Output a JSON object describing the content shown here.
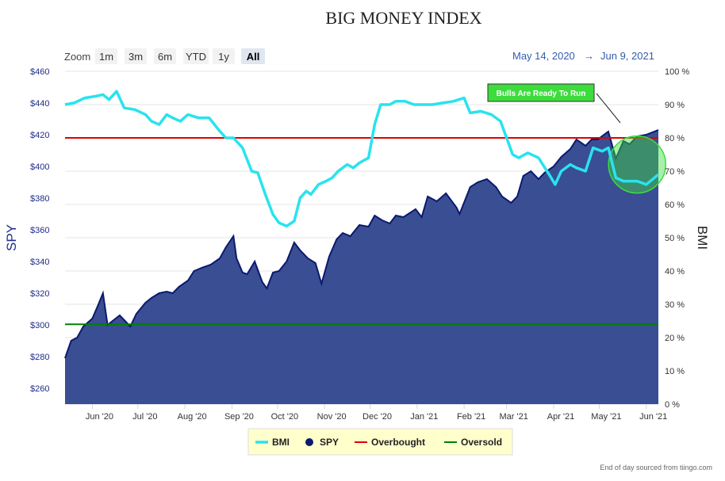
{
  "title": "BIG MONEY INDEX",
  "zoom": {
    "label": "Zoom",
    "buttons": [
      "1m",
      "3m",
      "6m",
      "YTD",
      "1y",
      "All"
    ],
    "active": "All"
  },
  "range": {
    "from": "May 14, 2020",
    "arrow": "→",
    "to": "Jun 9, 2021"
  },
  "credit": "End of day sourced from tiingo.com",
  "annotation": {
    "text": "Bulls Are Ready To Run",
    "color": "#3ddc3d"
  },
  "colors": {
    "spy_fill": "#3a4e93",
    "spy_line": "#0b1a6e",
    "bmi_line": "#29e3ee",
    "overbought": "#e10000",
    "oversold": "#008000",
    "legend_bg": "#ffffcc"
  },
  "chart_data": {
    "type": "line",
    "title": "BIG MONEY INDEX",
    "x_range": [
      "2020-05-14",
      "2021-06-09"
    ],
    "x_ticks": [
      "Jun '20",
      "Jul '20",
      "Aug '20",
      "Sep '20",
      "Oct '20",
      "Nov '20",
      "Dec '20",
      "Jan '21",
      "Feb '21",
      "Mar '21",
      "Apr '21",
      "May '21",
      "Jun '21"
    ],
    "y_left": {
      "label": "SPY",
      "range": [
        250,
        460
      ],
      "ticks": [
        "$260",
        "$280",
        "$300",
        "$320",
        "$340",
        "$360",
        "$380",
        "$400",
        "$420",
        "$440",
        "$460"
      ]
    },
    "y_right": {
      "label": "BMI",
      "range": [
        0,
        100
      ],
      "ticks": [
        "0 %",
        "10 %",
        "20 %",
        "30 %",
        "40 %",
        "50 %",
        "60 %",
        "70 %",
        "80 %",
        "90 %",
        "100 %"
      ]
    },
    "series": [
      {
        "name": "SPY",
        "type": "area",
        "axis": "left",
        "points": [
          [
            "2020-05-14",
            279
          ],
          [
            "2020-05-18",
            290
          ],
          [
            "2020-05-22",
            292
          ],
          [
            "2020-05-26",
            299
          ],
          [
            "2020-06-01",
            304
          ],
          [
            "2020-06-05",
            313
          ],
          [
            "2020-06-08",
            320
          ],
          [
            "2020-06-11",
            300
          ],
          [
            "2020-06-15",
            303
          ],
          [
            "2020-06-19",
            306
          ],
          [
            "2020-06-26",
            299
          ],
          [
            "2020-06-30",
            307
          ],
          [
            "2020-07-06",
            314
          ],
          [
            "2020-07-10",
            317
          ],
          [
            "2020-07-15",
            320
          ],
          [
            "2020-07-20",
            321
          ],
          [
            "2020-07-24",
            320
          ],
          [
            "2020-07-28",
            324
          ],
          [
            "2020-08-03",
            328
          ],
          [
            "2020-08-07",
            334
          ],
          [
            "2020-08-12",
            336
          ],
          [
            "2020-08-18",
            338
          ],
          [
            "2020-08-24",
            342
          ],
          [
            "2020-08-28",
            349
          ],
          [
            "2020-09-02",
            356
          ],
          [
            "2020-09-04",
            342
          ],
          [
            "2020-09-08",
            333
          ],
          [
            "2020-09-11",
            332
          ],
          [
            "2020-09-16",
            340
          ],
          [
            "2020-09-21",
            327
          ],
          [
            "2020-09-24",
            323
          ],
          [
            "2020-09-28",
            333
          ],
          [
            "2020-10-02",
            334
          ],
          [
            "2020-10-07",
            340
          ],
          [
            "2020-10-12",
            352
          ],
          [
            "2020-10-16",
            347
          ],
          [
            "2020-10-21",
            342
          ],
          [
            "2020-10-26",
            339
          ],
          [
            "2020-10-30",
            326
          ],
          [
            "2020-11-04",
            343
          ],
          [
            "2020-11-09",
            354
          ],
          [
            "2020-11-13",
            358
          ],
          [
            "2020-11-18",
            356
          ],
          [
            "2020-11-24",
            363
          ],
          [
            "2020-11-30",
            362
          ],
          [
            "2020-12-04",
            369
          ],
          [
            "2020-12-09",
            366
          ],
          [
            "2020-12-14",
            364
          ],
          [
            "2020-12-18",
            369
          ],
          [
            "2020-12-23",
            368
          ],
          [
            "2020-12-31",
            373
          ],
          [
            "2021-01-04",
            368
          ],
          [
            "2021-01-08",
            381
          ],
          [
            "2021-01-14",
            378
          ],
          [
            "2021-01-20",
            383
          ],
          [
            "2021-01-27",
            374
          ],
          [
            "2021-01-29",
            370
          ],
          [
            "2021-02-05",
            387
          ],
          [
            "2021-02-10",
            390
          ],
          [
            "2021-02-16",
            392
          ],
          [
            "2021-02-22",
            387
          ],
          [
            "2021-02-26",
            381
          ],
          [
            "2021-03-04",
            377
          ],
          [
            "2021-03-08",
            381
          ],
          [
            "2021-03-12",
            394
          ],
          [
            "2021-03-17",
            397
          ],
          [
            "2021-03-22",
            392
          ],
          [
            "2021-03-26",
            396
          ],
          [
            "2021-04-01",
            400
          ],
          [
            "2021-04-06",
            406
          ],
          [
            "2021-04-12",
            411
          ],
          [
            "2021-04-16",
            417
          ],
          [
            "2021-04-22",
            413
          ],
          [
            "2021-04-26",
            417
          ],
          [
            "2021-04-30",
            417
          ],
          [
            "2021-05-07",
            422
          ],
          [
            "2021-05-12",
            405
          ],
          [
            "2021-05-17",
            416
          ],
          [
            "2021-05-21",
            414
          ],
          [
            "2021-05-26",
            419
          ],
          [
            "2021-06-01",
            420
          ],
          [
            "2021-06-09",
            423
          ]
        ]
      },
      {
        "name": "BMI",
        "type": "line",
        "axis": "right",
        "points": [
          [
            "2020-05-14",
            90
          ],
          [
            "2020-05-20",
            90.5
          ],
          [
            "2020-05-27",
            92
          ],
          [
            "2020-06-03",
            92.5
          ],
          [
            "2020-06-08",
            93
          ],
          [
            "2020-06-12",
            91.5
          ],
          [
            "2020-06-17",
            94
          ],
          [
            "2020-06-22",
            89
          ],
          [
            "2020-06-29",
            88.5
          ],
          [
            "2020-07-06",
            87
          ],
          [
            "2020-07-10",
            85
          ],
          [
            "2020-07-15",
            84
          ],
          [
            "2020-07-20",
            87
          ],
          [
            "2020-07-24",
            86
          ],
          [
            "2020-07-29",
            85
          ],
          [
            "2020-08-03",
            87
          ],
          [
            "2020-08-10",
            86
          ],
          [
            "2020-08-17",
            86
          ],
          [
            "2020-08-24",
            82
          ],
          [
            "2020-08-28",
            80
          ],
          [
            "2020-09-02",
            80
          ],
          [
            "2020-09-08",
            77
          ],
          [
            "2020-09-14",
            70
          ],
          [
            "2020-09-18",
            69.5
          ],
          [
            "2020-09-23",
            63
          ],
          [
            "2020-09-28",
            57
          ],
          [
            "2020-10-02",
            54.5
          ],
          [
            "2020-10-07",
            53.5
          ],
          [
            "2020-10-12",
            55
          ],
          [
            "2020-10-16",
            62
          ],
          [
            "2020-10-20",
            64
          ],
          [
            "2020-10-23",
            63
          ],
          [
            "2020-10-28",
            66
          ],
          [
            "2020-11-02",
            67
          ],
          [
            "2020-11-06",
            68
          ],
          [
            "2020-11-10",
            70
          ],
          [
            "2020-11-16",
            72
          ],
          [
            "2020-11-20",
            71
          ],
          [
            "2020-11-24",
            72.5
          ],
          [
            "2020-11-30",
            74
          ],
          [
            "2020-12-04",
            84
          ],
          [
            "2020-12-08",
            90
          ],
          [
            "2020-12-14",
            90
          ],
          [
            "2020-12-18",
            91
          ],
          [
            "2020-12-24",
            91
          ],
          [
            "2020-12-30",
            90
          ],
          [
            "2021-01-05",
            90
          ],
          [
            "2021-01-11",
            90
          ],
          [
            "2021-01-18",
            90.5
          ],
          [
            "2021-01-25",
            91
          ],
          [
            "2021-02-01",
            92
          ],
          [
            "2021-02-05",
            87.5
          ],
          [
            "2021-02-12",
            88
          ],
          [
            "2021-02-19",
            87
          ],
          [
            "2021-02-25",
            85
          ],
          [
            "2021-03-01",
            80
          ],
          [
            "2021-03-05",
            75
          ],
          [
            "2021-03-09",
            74
          ],
          [
            "2021-03-15",
            75.5
          ],
          [
            "2021-03-22",
            74
          ],
          [
            "2021-03-29",
            69
          ],
          [
            "2021-04-02",
            66
          ],
          [
            "2021-04-06",
            70
          ],
          [
            "2021-04-12",
            72
          ],
          [
            "2021-04-16",
            71
          ],
          [
            "2021-04-22",
            70
          ],
          [
            "2021-04-27",
            77
          ],
          [
            "2021-05-03",
            76
          ],
          [
            "2021-05-07",
            77
          ],
          [
            "2021-05-12",
            68
          ],
          [
            "2021-05-17",
            67
          ],
          [
            "2021-05-21",
            67
          ],
          [
            "2021-05-26",
            67
          ],
          [
            "2021-06-01",
            66
          ],
          [
            "2021-06-09",
            69
          ]
        ]
      },
      {
        "name": "Overbought",
        "type": "hline",
        "axis": "right",
        "value": 80
      },
      {
        "name": "Oversold",
        "type": "hline",
        "axis": "right",
        "value": 24
      }
    ],
    "legend": {
      "position": "bottom-center",
      "items": [
        "BMI",
        "SPY",
        "Overbought",
        "Oversold"
      ]
    },
    "annotations": [
      {
        "text": "Bulls Are Ready To Run",
        "x": "2021-05-26",
        "y_right": 72
      }
    ],
    "grid": true
  }
}
